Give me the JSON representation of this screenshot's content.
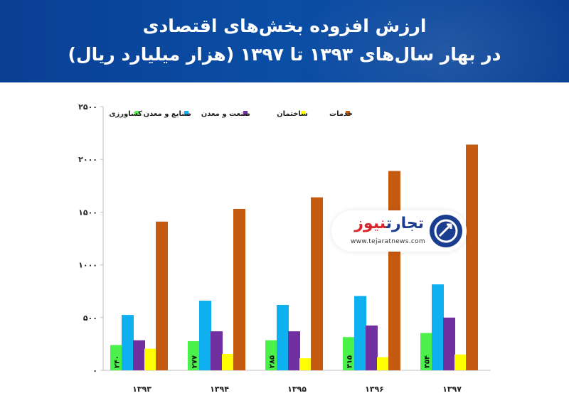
{
  "header": {
    "title_line1": "ارزش افزوده بخش‌های اقتصادی",
    "title_line2": "در بهار سال‌های ۱۳۹۳ تا ۱۳۹۷ (هزار میلیارد ریال)"
  },
  "logo": {
    "name_part1": "تجارت",
    "name_part2": "نیوز",
    "url": "www.tejaratnews.com",
    "color_primary": "#1b3d8f",
    "color_secondary": "#d8262c",
    "icon": "tejaratnews-logo-icon"
  },
  "chart_data": {
    "type": "bar",
    "categories": [
      "۱۳۹۳",
      "۱۳۹۴",
      "۱۳۹۵",
      "۱۳۹۶",
      "۱۳۹۷"
    ],
    "ylim": [
      0,
      2500
    ],
    "yticks": [
      0,
      500,
      1000,
      1500,
      2000,
      2500
    ],
    "ytick_labels": [
      "۰",
      "۵۰۰",
      "۱۰۰۰",
      "۱۵۰۰",
      "۲۰۰۰",
      "۲۵۰۰"
    ],
    "legend_position": "top",
    "grid": false,
    "series": [
      {
        "name": "کشاورزی",
        "color": "#4cf04a",
        "values": [
          240,
          277,
          285,
          315,
          354
        ],
        "labels": [
          "۲۴۰",
          "۲۷۷",
          "۲۸۵",
          "۳۱۵",
          "۳۵۴"
        ]
      },
      {
        "name": "صنایع و معدن",
        "color": "#0fb0ef",
        "values": [
          525,
          660,
          620,
          705,
          815
        ]
      },
      {
        "name": "صنعت و معدن",
        "color": "#7030a0",
        "values": [
          285,
          370,
          370,
          425,
          500
        ]
      },
      {
        "name": "ساختمان",
        "color": "#ffff00",
        "values": [
          205,
          155,
          115,
          125,
          150
        ]
      },
      {
        "name": "خدمات",
        "color": "#c55a11",
        "values": [
          1410,
          1530,
          1640,
          1890,
          2140
        ]
      }
    ]
  }
}
